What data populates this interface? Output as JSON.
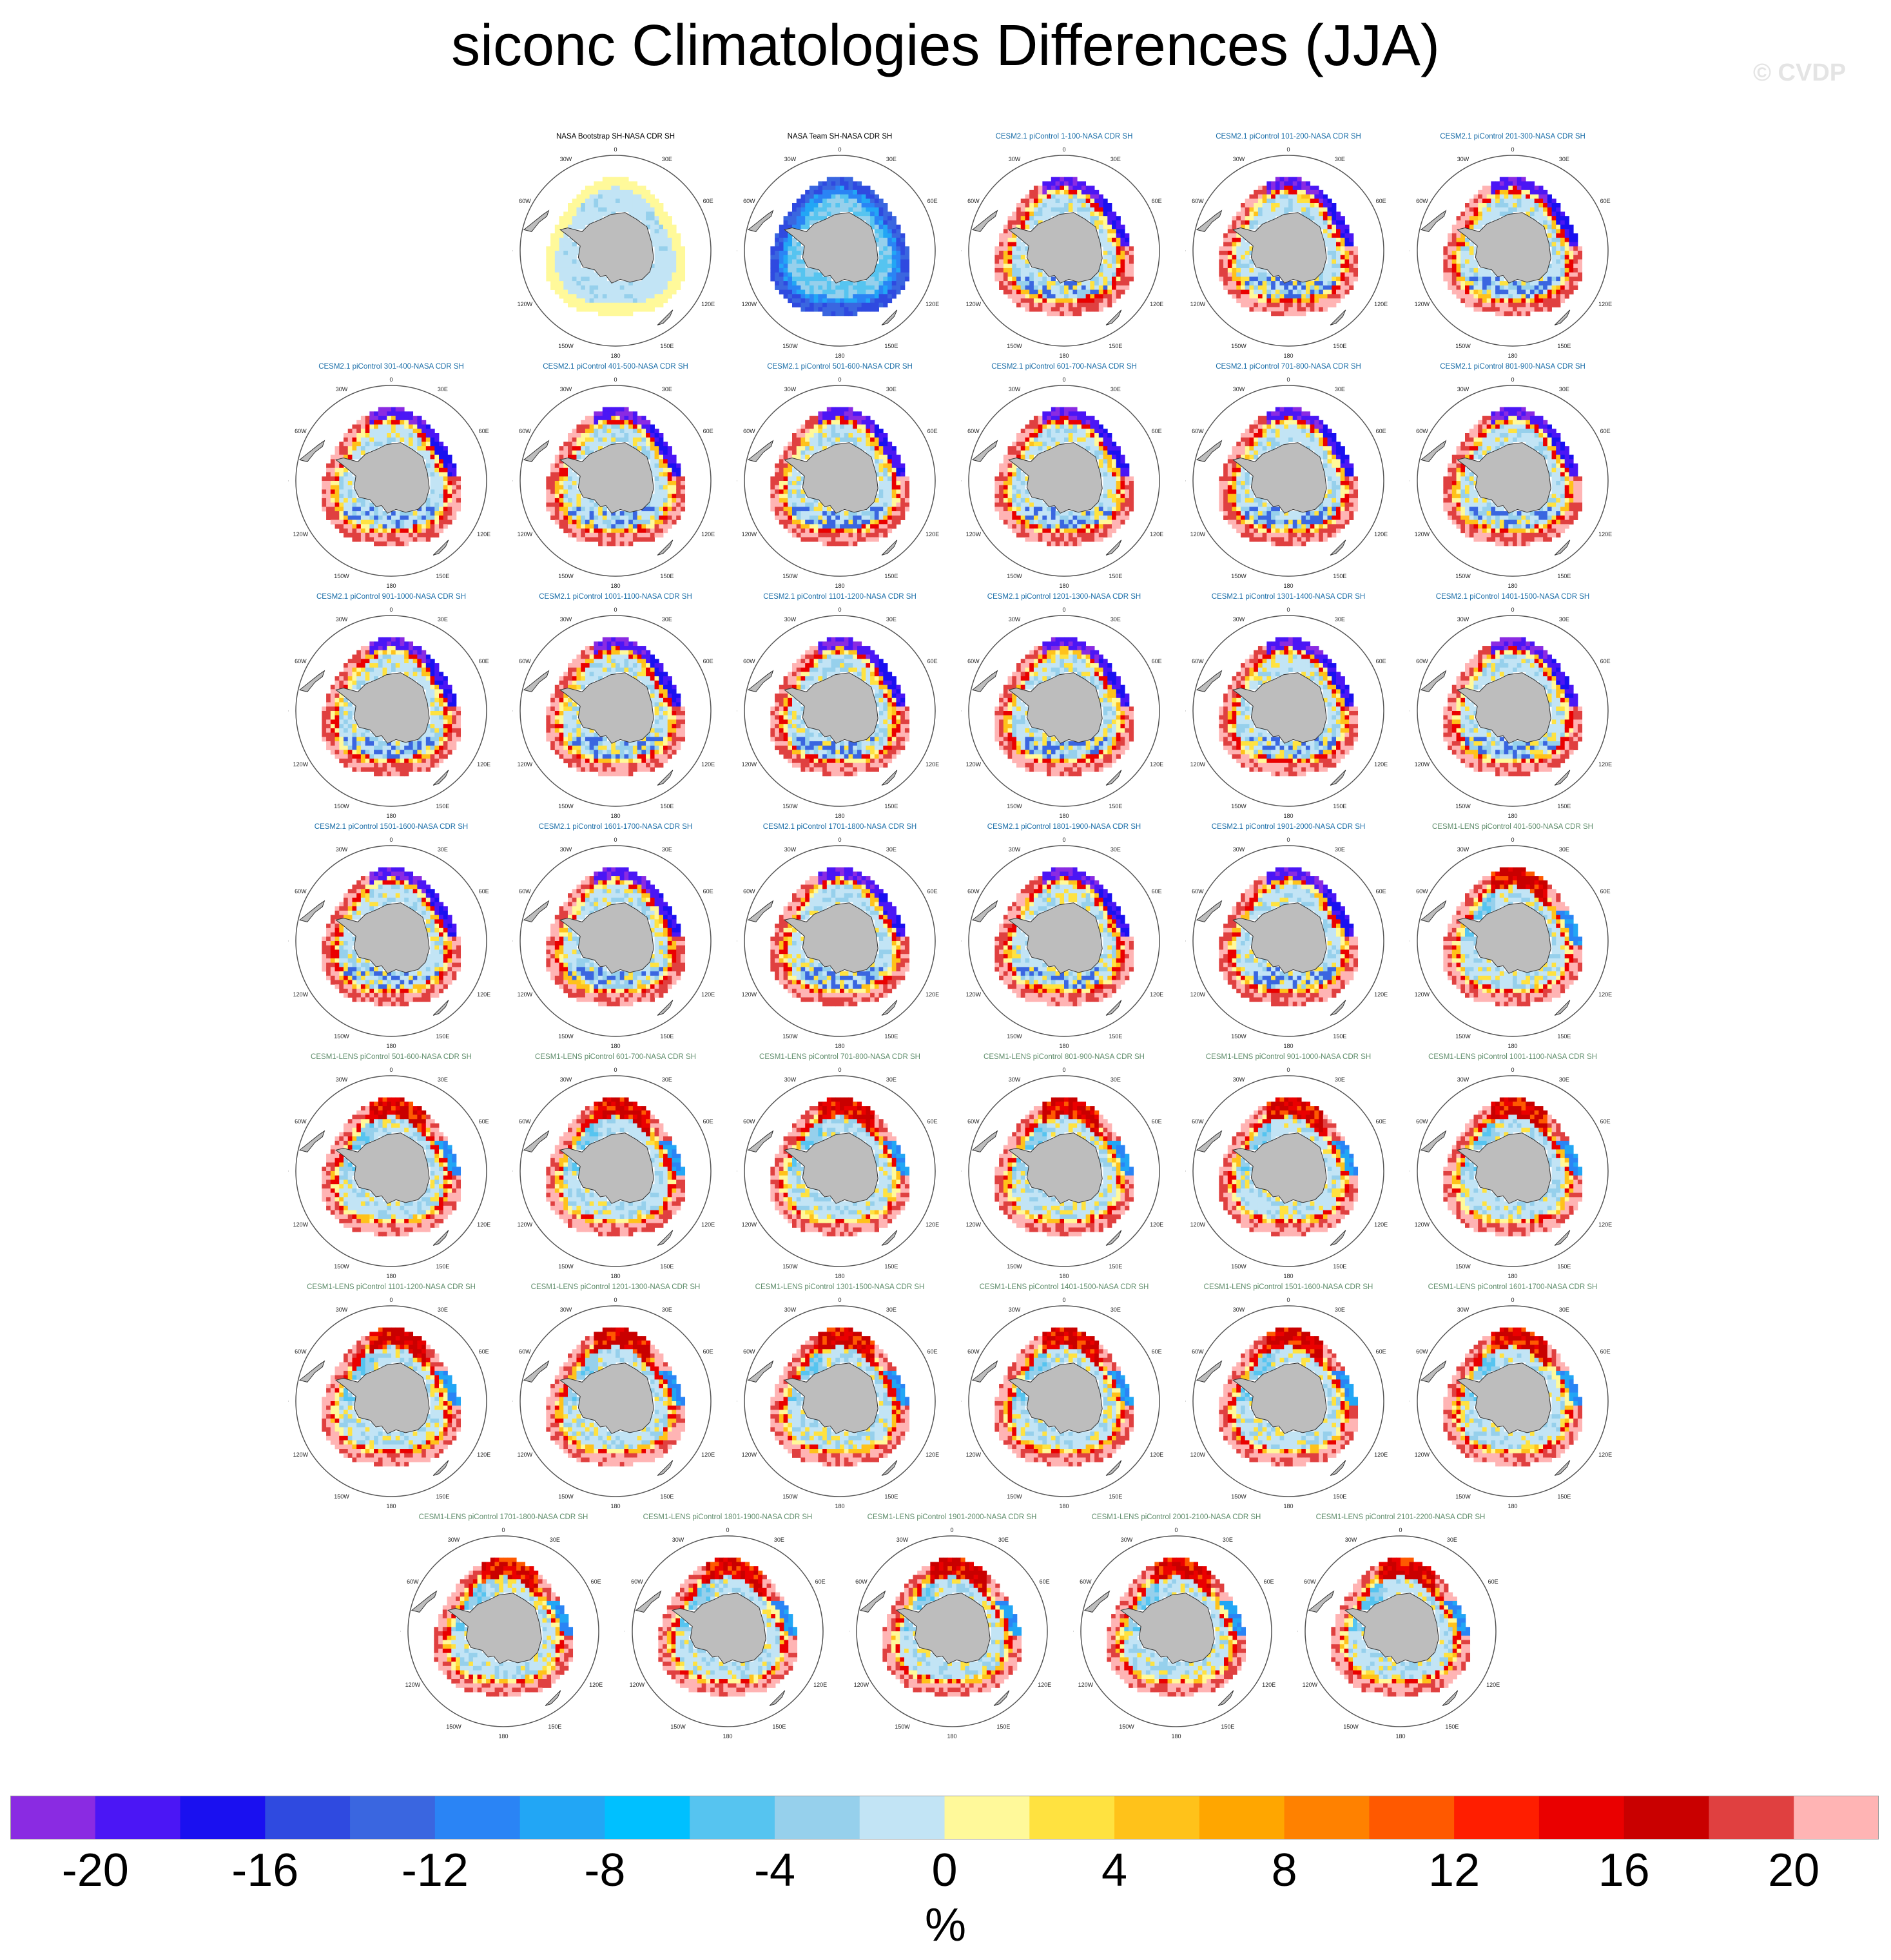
{
  "title": "siconc Climatologies Differences (JJA)",
  "watermark": "© CVDP",
  "colors": {
    "obs_title": "#000000",
    "cesm2_title": "#1b6ea8",
    "cesm1_title": "#5e8c6a",
    "land": "#bdbdbd",
    "map_border": "#555555"
  },
  "map_labels": {
    "top": "0",
    "bottom": "180",
    "left": "90W",
    "right": "90E",
    "upper_left_inner": "30W",
    "upper_right_inner": "30E",
    "upper_left_outer": "60W",
    "upper_right_outer": "60E",
    "lower_left_outer": "120W",
    "lower_right_outer": "120E",
    "lower_left_inner": "150W",
    "lower_right_inner": "150E"
  },
  "panels": [
    {
      "title": "NASA Bootstrap SH-NASA CDR SH",
      "group": "obs",
      "pattern": "bootstrap"
    },
    {
      "title": "NASA Team SH-NASA CDR SH",
      "group": "obs",
      "pattern": "team"
    },
    {
      "title": "CESM2.1 piControl 1-100-NASA CDR SH",
      "group": "cesm2",
      "pattern": "cesm2"
    },
    {
      "title": "CESM2.1 piControl 101-200-NASA CDR SH",
      "group": "cesm2",
      "pattern": "cesm2"
    },
    {
      "title": "CESM2.1 piControl 201-300-NASA CDR SH",
      "group": "cesm2",
      "pattern": "cesm2"
    },
    {
      "title": "CESM2.1 piControl 301-400-NASA CDR SH",
      "group": "cesm2",
      "pattern": "cesm2"
    },
    {
      "title": "CESM2.1 piControl 401-500-NASA CDR SH",
      "group": "cesm2",
      "pattern": "cesm2"
    },
    {
      "title": "CESM2.1 piControl 501-600-NASA CDR SH",
      "group": "cesm2",
      "pattern": "cesm2"
    },
    {
      "title": "CESM2.1 piControl 601-700-NASA CDR SH",
      "group": "cesm2",
      "pattern": "cesm2"
    },
    {
      "title": "CESM2.1 piControl 701-800-NASA CDR SH",
      "group": "cesm2",
      "pattern": "cesm2"
    },
    {
      "title": "CESM2.1 piControl 801-900-NASA CDR SH",
      "group": "cesm2",
      "pattern": "cesm2"
    },
    {
      "title": "CESM2.1 piControl 901-1000-NASA CDR SH",
      "group": "cesm2",
      "pattern": "cesm2"
    },
    {
      "title": "CESM2.1 piControl 1001-1100-NASA CDR SH",
      "group": "cesm2",
      "pattern": "cesm2"
    },
    {
      "title": "CESM2.1 piControl 1101-1200-NASA CDR SH",
      "group": "cesm2",
      "pattern": "cesm2"
    },
    {
      "title": "CESM2.1 piControl 1201-1300-NASA CDR SH",
      "group": "cesm2",
      "pattern": "cesm2"
    },
    {
      "title": "CESM2.1 piControl 1301-1400-NASA CDR SH",
      "group": "cesm2",
      "pattern": "cesm2"
    },
    {
      "title": "CESM2.1 piControl 1401-1500-NASA CDR SH",
      "group": "cesm2",
      "pattern": "cesm2"
    },
    {
      "title": "CESM2.1 piControl 1501-1600-NASA CDR SH",
      "group": "cesm2",
      "pattern": "cesm2"
    },
    {
      "title": "CESM2.1 piControl 1601-1700-NASA CDR SH",
      "group": "cesm2",
      "pattern": "cesm2"
    },
    {
      "title": "CESM2.1 piControl 1701-1800-NASA CDR SH",
      "group": "cesm2",
      "pattern": "cesm2"
    },
    {
      "title": "CESM2.1 piControl 1801-1900-NASA CDR SH",
      "group": "cesm2",
      "pattern": "cesm2"
    },
    {
      "title": "CESM2.1 piControl 1901-2000-NASA CDR SH",
      "group": "cesm2",
      "pattern": "cesm2"
    },
    {
      "title": "CESM1-LENS piControl 401-500-NASA CDR SH",
      "group": "cesm1",
      "pattern": "cesm1"
    },
    {
      "title": "CESM1-LENS piControl 501-600-NASA CDR SH",
      "group": "cesm1",
      "pattern": "cesm1"
    },
    {
      "title": "CESM1-LENS piControl 601-700-NASA CDR SH",
      "group": "cesm1",
      "pattern": "cesm1"
    },
    {
      "title": "CESM1-LENS piControl 701-800-NASA CDR SH",
      "group": "cesm1",
      "pattern": "cesm1"
    },
    {
      "title": "CESM1-LENS piControl 801-900-NASA CDR SH",
      "group": "cesm1",
      "pattern": "cesm1"
    },
    {
      "title": "CESM1-LENS piControl 901-1000-NASA CDR SH",
      "group": "cesm1",
      "pattern": "cesm1"
    },
    {
      "title": "CESM1-LENS piControl 1001-1100-NASA CDR SH",
      "group": "cesm1",
      "pattern": "cesm1"
    },
    {
      "title": "CESM1-LENS piControl 1101-1200-NASA CDR SH",
      "group": "cesm1",
      "pattern": "cesm1"
    },
    {
      "title": "CESM1-LENS piControl 1201-1300-NASA CDR SH",
      "group": "cesm1",
      "pattern": "cesm1"
    },
    {
      "title": "CESM1-LENS piControl 1301-1500-NASA CDR SH",
      "group": "cesm1",
      "pattern": "cesm1"
    },
    {
      "title": "CESM1-LENS piControl 1401-1500-NASA CDR SH",
      "group": "cesm1",
      "pattern": "cesm1"
    },
    {
      "title": "CESM1-LENS piControl 1501-1600-NASA CDR SH",
      "group": "cesm1",
      "pattern": "cesm1"
    },
    {
      "title": "CESM1-LENS piControl 1601-1700-NASA CDR SH",
      "group": "cesm1",
      "pattern": "cesm1"
    },
    {
      "title": "CESM1-LENS piControl 1701-1800-NASA CDR SH",
      "group": "cesm1",
      "pattern": "cesm1"
    },
    {
      "title": "CESM1-LENS piControl 1801-1900-NASA CDR SH",
      "group": "cesm1",
      "pattern": "cesm1"
    },
    {
      "title": "CESM1-LENS piControl 1901-2000-NASA CDR SH",
      "group": "cesm1",
      "pattern": "cesm1"
    },
    {
      "title": "CESM1-LENS piControl 2001-2100-NASA CDR SH",
      "group": "cesm1",
      "pattern": "cesm1"
    },
    {
      "title": "CESM1-LENS piControl 2101-2200-NASA CDR SH",
      "group": "cesm1",
      "pattern": "cesm1"
    }
  ],
  "colorbar": {
    "colors": [
      "#8a2be2",
      "#4b16f5",
      "#1a10f0",
      "#2f4ae0",
      "#3a66e0",
      "#2a84f5",
      "#22a6f5",
      "#00c0ff",
      "#56c4f0",
      "#96d0ec",
      "#c2e4f5",
      "#fff99a",
      "#ffe240",
      "#ffc21a",
      "#ffa600",
      "#ff8100",
      "#ff5900",
      "#ff1e00",
      "#ea0000",
      "#c90000",
      "#e04040",
      "#ffb4b4"
    ],
    "labels": [
      "-20",
      "-16",
      "-12",
      "-8",
      "-4",
      "0",
      "4",
      "8",
      "12",
      "16",
      "20"
    ],
    "unit": "%"
  }
}
